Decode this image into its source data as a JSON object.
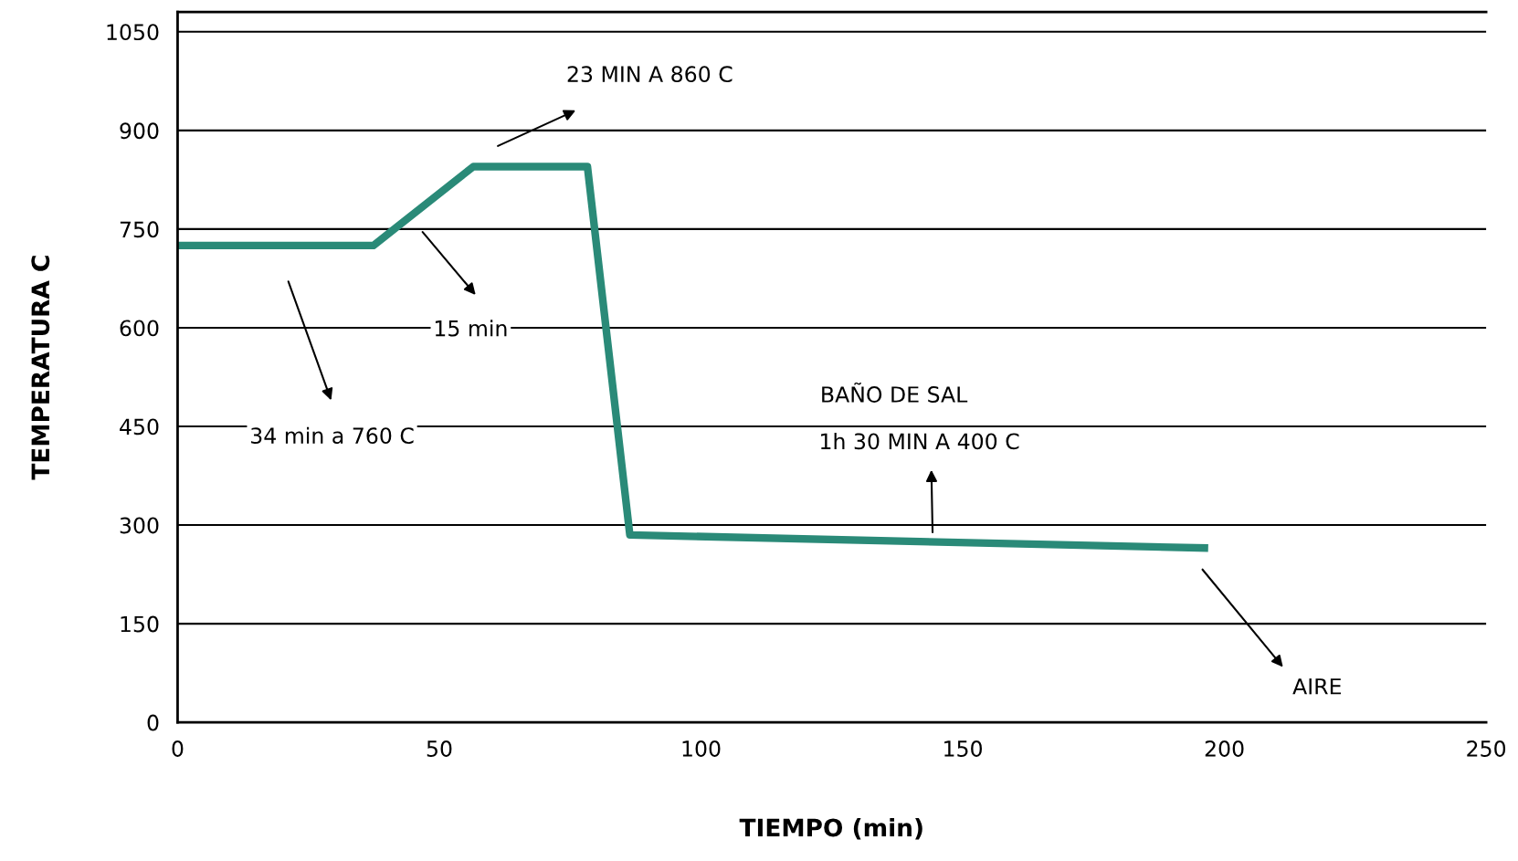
{
  "chart_data": {
    "type": "line",
    "xlabel": "TIEMPO (min)",
    "ylabel": "TEMPERATURA C",
    "x": [
      0,
      37.4,
      56.5,
      78.3,
      86.4,
      196.9
    ],
    "series": [
      {
        "color": "#2a8a78",
        "values": [
          725,
          725,
          845,
          845,
          285,
          265
        ]
      }
    ],
    "xlim": [
      0,
      250
    ],
    "xticks": [
      0,
      50,
      100,
      150,
      200,
      250
    ],
    "ylim": [
      0,
      1080
    ],
    "yticks": [
      0,
      150,
      300,
      450,
      600,
      750,
      900,
      1050
    ],
    "grid": "y",
    "legend": false,
    "marker": "none",
    "line_style": "solid",
    "annotations": [
      "23 MIN A 860 C",
      "15 min",
      "34 min a 760 C",
      "BAÑO DE SAL",
      "1h 30 MIN A 400 C",
      "AIRE"
    ]
  }
}
